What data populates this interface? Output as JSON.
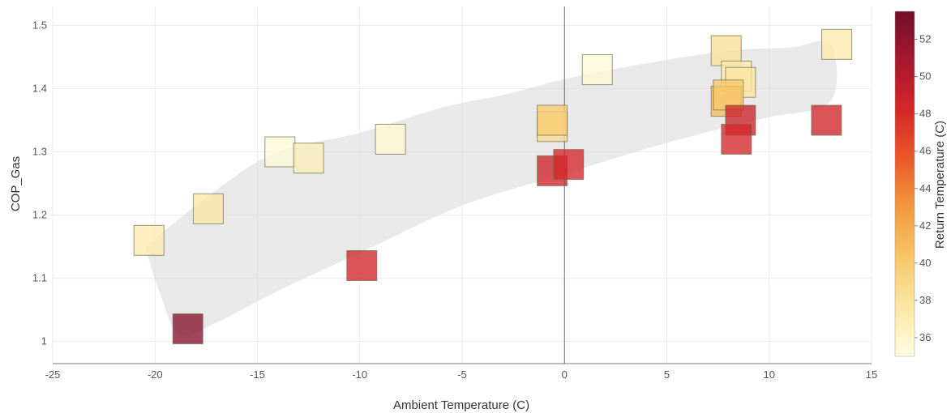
{
  "chart_data": {
    "type": "scatter",
    "xlabel": "Ambient Temperature (C)",
    "ylabel": "COP_Gas",
    "xlim": [
      -25,
      15
    ],
    "ylim": [
      0.965,
      1.53
    ],
    "xticks": [
      -25,
      -20,
      -15,
      -10,
      -5,
      0,
      5,
      10,
      15
    ],
    "yticks": [
      1,
      1.1,
      1.2,
      1.3,
      1.4,
      1.5
    ],
    "ytick_labels": [
      "1",
      "1.1",
      "1.2",
      "1.3",
      "1.4",
      "1.5"
    ],
    "grid": true,
    "marker": "square",
    "colorbar": {
      "title": "Return Temperature (C)",
      "range": [
        35,
        53.5
      ],
      "ticks": [
        36,
        38,
        40,
        42,
        44,
        46,
        48,
        50,
        52
      ],
      "colors": [
        "#fffde0",
        "#fbe7a4",
        "#f7c567",
        "#f29a3e",
        "#ea5a2a",
        "#d6272a",
        "#a8172f",
        "#720f2d"
      ]
    },
    "band": {
      "upper": [
        [
          -20.5,
          1.15
        ],
        [
          -17,
          1.24
        ],
        [
          -14,
          1.3
        ],
        [
          -10,
          1.33
        ],
        [
          -6,
          1.37
        ],
        [
          -3,
          1.39
        ],
        [
          0,
          1.415
        ],
        [
          4,
          1.44
        ],
        [
          8,
          1.46
        ],
        [
          11,
          1.465
        ],
        [
          13,
          1.47
        ]
      ],
      "lower": [
        [
          13,
          1.38
        ],
        [
          10,
          1.355
        ],
        [
          8,
          1.34
        ],
        [
          4,
          1.305
        ],
        [
          0,
          1.265
        ],
        [
          -5,
          1.215
        ],
        [
          -10,
          1.14
        ],
        [
          -14,
          1.08
        ],
        [
          -17,
          1.03
        ],
        [
          -18.8,
          1.01
        ],
        [
          -19.8,
          1.08
        ],
        [
          -20.5,
          1.15
        ]
      ]
    },
    "points": [
      {
        "x": -20.3,
        "y": 1.16,
        "return_temp": 37.2
      },
      {
        "x": -17.4,
        "y": 1.21,
        "return_temp": 37.6
      },
      {
        "x": -18.4,
        "y": 1.02,
        "return_temp": 52.5
      },
      {
        "x": -13.9,
        "y": 1.3,
        "return_temp": 35.4
      },
      {
        "x": -12.5,
        "y": 1.29,
        "return_temp": 36.8
      },
      {
        "x": -8.5,
        "y": 1.32,
        "return_temp": 35.6
      },
      {
        "x": -9.9,
        "y": 1.12,
        "return_temp": 48.6
      },
      {
        "x": -0.6,
        "y": 1.34,
        "return_temp": 38.6
      },
      {
        "x": -0.6,
        "y": 1.35,
        "return_temp": 39.8
      },
      {
        "x": -0.6,
        "y": 1.27,
        "return_temp": 48.6
      },
      {
        "x": 0.2,
        "y": 1.28,
        "return_temp": 48.3
      },
      {
        "x": 1.6,
        "y": 1.43,
        "return_temp": 35.5
      },
      {
        "x": 7.9,
        "y": 1.46,
        "return_temp": 38.2
      },
      {
        "x": 8.4,
        "y": 1.42,
        "return_temp": 37.4
      },
      {
        "x": 8.6,
        "y": 1.41,
        "return_temp": 37.8
      },
      {
        "x": 7.9,
        "y": 1.38,
        "return_temp": 40.8
      },
      {
        "x": 8.0,
        "y": 1.39,
        "return_temp": 40.2
      },
      {
        "x": 8.6,
        "y": 1.35,
        "return_temp": 48.8
      },
      {
        "x": 8.4,
        "y": 1.32,
        "return_temp": 48.4
      },
      {
        "x": 12.8,
        "y": 1.35,
        "return_temp": 48.6
      },
      {
        "x": 13.3,
        "y": 1.47,
        "return_temp": 37.4
      }
    ]
  }
}
